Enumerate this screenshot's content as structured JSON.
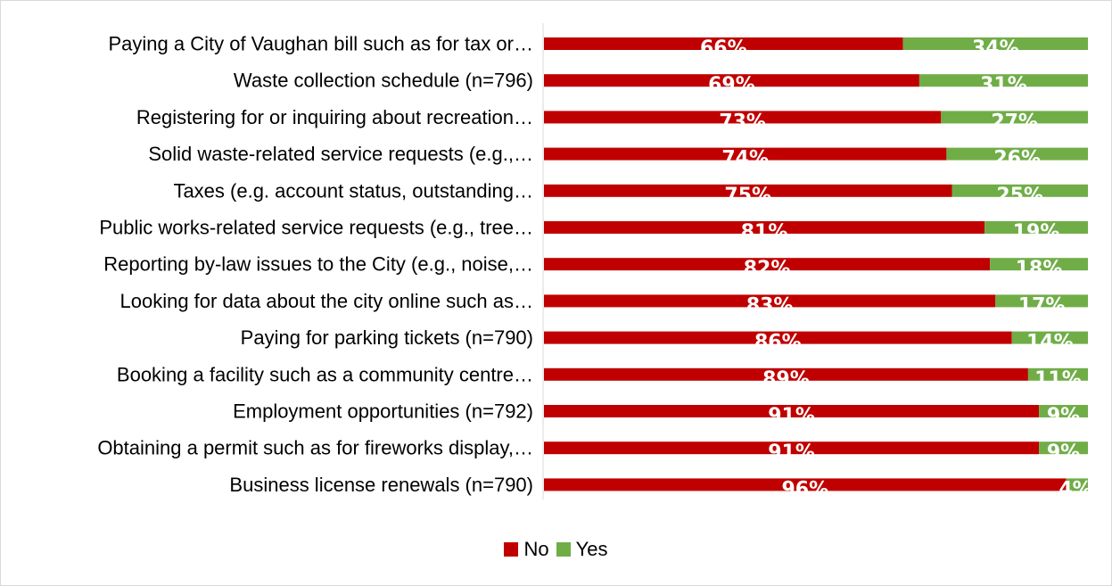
{
  "chart_data": {
    "type": "bar",
    "orientation": "horizontal",
    "stacked": true,
    "categories": [
      "Paying a City of Vaughan bill such as for tax or…",
      "Waste collection schedule (n=796)",
      "Registering for or inquiring about recreation…",
      "Solid waste-related service requests (e.g.,…",
      "Taxes (e.g. account status, outstanding…",
      "Public works-related service requests (e.g., tree…",
      "Reporting by-law issues to the City (e.g., noise,…",
      "Looking for data about the city online such as…",
      "Paying for parking tickets (n=790)",
      "Booking a facility such as a community centre…",
      "Employment opportunities (n=792)",
      "Obtaining a permit such as for fireworks display,…",
      "Business license renewals (n=790)"
    ],
    "series": [
      {
        "name": "No",
        "color": "#c00000",
        "values": [
          66,
          69,
          73,
          74,
          75,
          81,
          82,
          83,
          86,
          89,
          91,
          91,
          96
        ]
      },
      {
        "name": "Yes",
        "color": "#70ad47",
        "values": [
          34,
          31,
          27,
          26,
          25,
          19,
          18,
          17,
          14,
          11,
          9,
          9,
          4
        ]
      }
    ],
    "value_format": "percent",
    "xlim": [
      0,
      100
    ],
    "legend_position": "bottom",
    "grid": false
  }
}
